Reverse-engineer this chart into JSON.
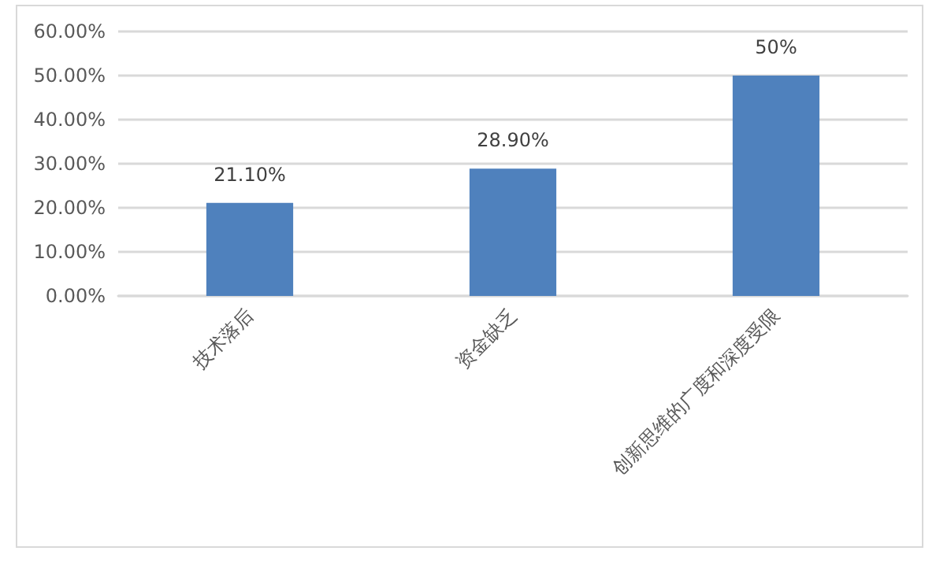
{
  "chart_data": {
    "type": "bar",
    "categories": [
      "技术落后",
      "资金缺乏",
      "创新思维的广度和深度受限"
    ],
    "values": [
      21.1,
      28.9,
      50
    ],
    "color": "#4f81bd",
    "value_labels": [
      "21.10%",
      "28.90%",
      "50%"
    ],
    "ylim": [
      0,
      60
    ],
    "yticks": [
      {
        "value": 0,
        "label": "0.00%"
      },
      {
        "value": 10,
        "label": "10.00%"
      },
      {
        "value": 20,
        "label": "20.00%"
      },
      {
        "value": 30,
        "label": "30.00%"
      },
      {
        "value": 40,
        "label": "40.00%"
      },
      {
        "value": 50,
        "label": "50.00%"
      },
      {
        "value": 60,
        "label": "60.00%"
      }
    ],
    "grid": "y"
  }
}
